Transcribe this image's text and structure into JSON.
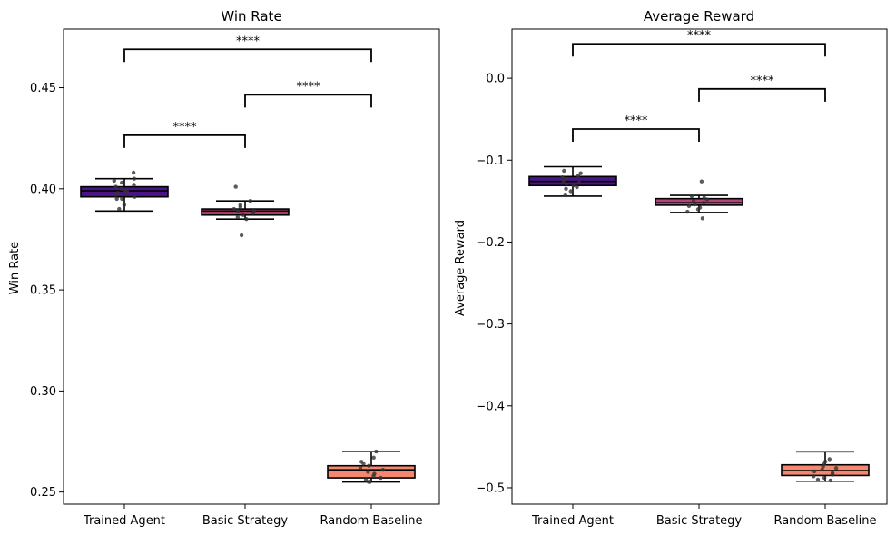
{
  "chart_data": [
    {
      "type": "box",
      "title": "Win Rate",
      "xlabel": "",
      "ylabel": "Win Rate",
      "ylim": [
        0.244,
        0.479
      ],
      "yticks": [
        "0.25",
        "0.30",
        "0.35",
        "0.40",
        "0.45"
      ],
      "categories": [
        "Trained Agent",
        "Basic Strategy",
        "Random Baseline"
      ],
      "colors": [
        "#4a1486",
        "#b5427a",
        "#f4876d"
      ],
      "boxes": [
        {
          "whisker_low": 0.389,
          "q1": 0.396,
          "median": 0.399,
          "q3": 0.401,
          "whisker_high": 0.405
        },
        {
          "whisker_low": 0.385,
          "q1": 0.387,
          "median": 0.389,
          "q3": 0.39,
          "whisker_high": 0.394
        },
        {
          "whisker_low": 0.255,
          "q1": 0.257,
          "median": 0.261,
          "q3": 0.263,
          "whisker_high": 0.27
        }
      ],
      "points": [
        [
          0.408,
          0.405,
          0.404,
          0.403,
          0.402,
          0.401,
          0.4,
          0.399,
          0.399,
          0.398,
          0.397,
          0.396,
          0.395,
          0.395,
          0.392,
          0.39
        ],
        [
          0.401,
          0.394,
          0.392,
          0.391,
          0.39,
          0.389,
          0.389,
          0.388,
          0.387,
          0.386,
          0.385,
          0.377
        ],
        [
          0.27,
          0.267,
          0.265,
          0.264,
          0.263,
          0.262,
          0.261,
          0.26,
          0.259,
          0.258,
          0.257,
          0.256,
          0.255,
          0.255
        ]
      ],
      "brackets": [
        {
          "from": 0,
          "to": 1,
          "y": 0.4265,
          "label": "****"
        },
        {
          "from": 1,
          "to": 2,
          "y": 0.4465,
          "label": "****"
        },
        {
          "from": 0,
          "to": 2,
          "y": 0.469,
          "label": "****"
        }
      ]
    },
    {
      "type": "box",
      "title": "Average Reward",
      "xlabel": "",
      "ylabel": "Average Reward",
      "ylim": [
        -0.52,
        0.06
      ],
      "yticks": [
        "0.0",
        "−0.1",
        "−0.2",
        "−0.3",
        "−0.4",
        "−0.5"
      ],
      "categories": [
        "Trained Agent",
        "Basic Strategy",
        "Random Baseline"
      ],
      "colors": [
        "#4a1486",
        "#b5427a",
        "#f4876d"
      ],
      "boxes": [
        {
          "whisker_low": -0.144,
          "q1": -0.131,
          "median": -0.126,
          "q3": -0.12,
          "whisker_high": -0.108
        },
        {
          "whisker_low": -0.164,
          "q1": -0.155,
          "median": -0.152,
          "q3": -0.147,
          "whisker_high": -0.143
        },
        {
          "whisker_low": -0.492,
          "q1": -0.485,
          "median": -0.479,
          "q3": -0.472,
          "whisker_high": -0.456
        }
      ],
      "points": [
        [
          -0.113,
          -0.116,
          -0.119,
          -0.121,
          -0.123,
          -0.125,
          -0.127,
          -0.129,
          -0.131,
          -0.133,
          -0.135,
          -0.138,
          -0.142
        ],
        [
          -0.126,
          -0.144,
          -0.146,
          -0.148,
          -0.15,
          -0.152,
          -0.154,
          -0.156,
          -0.158,
          -0.16,
          -0.163,
          -0.171
        ],
        [
          -0.465,
          -0.468,
          -0.471,
          -0.474,
          -0.476,
          -0.478,
          -0.48,
          -0.482,
          -0.484,
          -0.486,
          -0.488,
          -0.49,
          -0.491
        ]
      ],
      "brackets": [
        {
          "from": 0,
          "to": 1,
          "y": -0.062,
          "label": "****"
        },
        {
          "from": 1,
          "to": 2,
          "y": -0.013,
          "label": "****"
        },
        {
          "from": 0,
          "to": 2,
          "y": 0.042,
          "label": "****"
        }
      ]
    }
  ]
}
